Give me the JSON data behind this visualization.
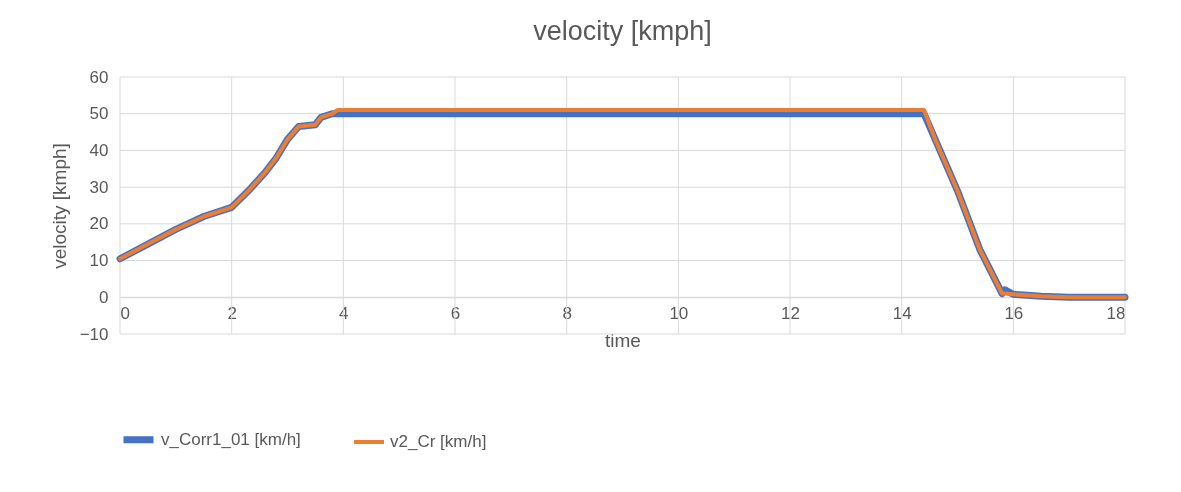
{
  "chart_data": {
    "type": "line",
    "title": "velocity [kmph]",
    "xlabel": "time",
    "ylabel": "velocity [kmph]",
    "xlim": [
      0,
      18
    ],
    "xticks": [
      0,
      2,
      4,
      6,
      8,
      10,
      12,
      14,
      16,
      18
    ],
    "ylim": [
      -10,
      60
    ],
    "yticks": [
      -10,
      0,
      10,
      20,
      30,
      40,
      50,
      60
    ],
    "grid": true,
    "legend": "bottom",
    "marker": "none",
    "line_style": "solid",
    "series": [
      {
        "name": "v_Corr1_01  [km/h]",
        "color": "#4472c4",
        "x": [
          0,
          0.5,
          1,
          1.5,
          2,
          2.3,
          2.6,
          2.8,
          3,
          3.2,
          3.5,
          3.6,
          3.8,
          14.4,
          14.6,
          15,
          15.4,
          15.8,
          15.85,
          16,
          16.5,
          17,
          18
        ],
        "values": [
          10.5,
          14.5,
          18.5,
          22,
          24.5,
          29,
          34,
          38,
          43,
          46.5,
          47,
          49,
          50,
          50,
          43,
          29,
          13,
          1,
          2,
          0.8,
          0.3,
          0,
          0
        ]
      },
      {
        "name": "v2_Cr  [km/h]",
        "color": "#ed7d31",
        "x": [
          0,
          0.5,
          1,
          1.5,
          2,
          2.3,
          2.6,
          2.8,
          3,
          3.2,
          3.5,
          3.6,
          3.8,
          3.9,
          14.4,
          14.6,
          15,
          15.4,
          15.8,
          15.85,
          16,
          16.5,
          17,
          18
        ],
        "values": [
          10.5,
          14.5,
          18.5,
          22,
          24.5,
          29,
          34,
          38,
          43,
          46.5,
          47,
          49,
          50,
          51,
          51,
          43,
          29,
          13,
          1,
          1,
          0.8,
          0.3,
          0,
          0
        ]
      }
    ]
  }
}
